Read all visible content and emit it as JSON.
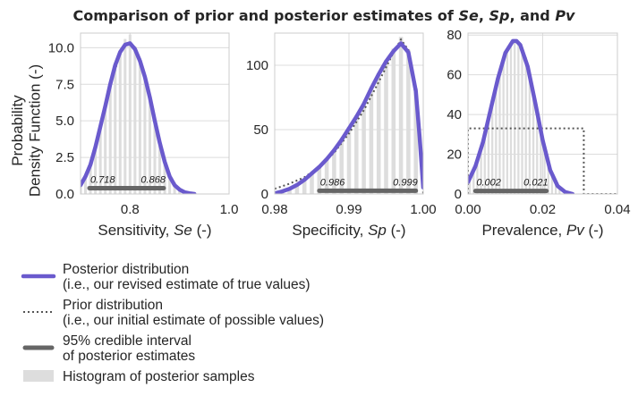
{
  "figure": {
    "title_parts": [
      {
        "text": "Comparison of prior and posterior estimates of ",
        "italic": false
      },
      {
        "text": "Se",
        "italic": true
      },
      {
        "text": ", ",
        "italic": false
      },
      {
        "text": "Sp",
        "italic": true
      },
      {
        "text": ", and ",
        "italic": false
      },
      {
        "text": "Pv",
        "italic": true
      }
    ],
    "ylabel_lines": [
      "Probability",
      "Density Function (-)"
    ]
  },
  "colors": {
    "posterior": "#6a5acd",
    "prior": "#555555",
    "ci": "#666666",
    "hist": "#dddddd",
    "grid": "#dcdcdc",
    "axis": "#cccccc"
  },
  "legend": [
    {
      "kind": "posterior",
      "lines": [
        "Posterior distribution",
        "(i.e., our revised estimate of true values)"
      ]
    },
    {
      "kind": "prior",
      "lines": [
        "Prior distribution",
        "(i.e., our initial estimate of possible values)"
      ]
    },
    {
      "kind": "ci",
      "lines": [
        "95% credible interval",
        "of posterior estimates"
      ]
    },
    {
      "kind": "hist",
      "lines": [
        "Histogram of posterior samples"
      ]
    }
  ],
  "chart_data": [
    {
      "type": "line",
      "xlabel_parts": [
        {
          "text": "Sensitivity, ",
          "italic": false
        },
        {
          "text": "Se",
          "italic": true
        },
        {
          "text": " (-)",
          "italic": false
        }
      ],
      "xlim": [
        0.7,
        1.0
      ],
      "ylim": [
        0,
        11
      ],
      "xticks": [
        0.8,
        1.0
      ],
      "xtick_labels": [
        "0.8",
        "1.0"
      ],
      "yticks": [
        0,
        2.5,
        5,
        7.5,
        10
      ],
      "ytick_labels": [
        "0.0",
        "2.5",
        "5.0",
        "7.5",
        "10.0"
      ],
      "posterior": {
        "x": [
          0.7,
          0.71,
          0.72,
          0.73,
          0.74,
          0.75,
          0.76,
          0.77,
          0.78,
          0.79,
          0.8,
          0.81,
          0.82,
          0.83,
          0.84,
          0.85,
          0.86,
          0.87,
          0.88,
          0.89,
          0.9,
          0.91,
          0.92,
          0.93
        ],
        "y": [
          0.6,
          1.2,
          2.0,
          3.2,
          4.6,
          6.0,
          7.5,
          8.8,
          9.7,
          10.2,
          10.3,
          9.9,
          9.1,
          8.0,
          6.6,
          5.0,
          3.5,
          2.2,
          1.2,
          0.6,
          0.3,
          0.12,
          0.05,
          0.0
        ]
      },
      "prior": {
        "x": [
          0.7,
          0.72,
          0.74,
          0.76,
          0.78,
          0.79,
          0.8,
          0.81,
          0.82,
          0.84,
          0.86,
          0.88,
          0.9
        ],
        "y": [
          0.5,
          1.9,
          4.5,
          7.4,
          9.6,
          10.2,
          10.4,
          10.0,
          9.3,
          6.8,
          3.6,
          1.2,
          0.3
        ]
      },
      "histogram": {
        "x": [
          0.7,
          0.71,
          0.72,
          0.73,
          0.74,
          0.75,
          0.76,
          0.77,
          0.78,
          0.79,
          0.8,
          0.81,
          0.82,
          0.83,
          0.84,
          0.85,
          0.86,
          0.87,
          0.88,
          0.89,
          0.9
        ],
        "y": [
          0.6,
          1.3,
          2.1,
          3.3,
          4.7,
          6.1,
          7.6,
          8.9,
          9.8,
          10.6,
          10.9,
          10.1,
          9.2,
          8.1,
          6.7,
          5.1,
          3.6,
          2.3,
          1.3,
          0.6,
          0.3
        ]
      },
      "ci": {
        "low": 0.718,
        "high": 0.868,
        "y": 0.4,
        "low_label": "0.718",
        "high_label": "0.868"
      }
    },
    {
      "type": "line",
      "xlabel_parts": [
        {
          "text": "Specificity, ",
          "italic": false
        },
        {
          "text": "Sp",
          "italic": true
        },
        {
          "text": " (-)",
          "italic": false
        }
      ],
      "xlim": [
        0.98,
        1.0
      ],
      "ylim": [
        0,
        125
      ],
      "xticks": [
        0.98,
        0.99,
        1.0
      ],
      "xtick_labels": [
        "0.98",
        "0.99",
        "1.00"
      ],
      "yticks": [
        0,
        50,
        100
      ],
      "ytick_labels": [
        "0",
        "50",
        "100"
      ],
      "posterior": {
        "x": [
          0.98,
          0.981,
          0.982,
          0.983,
          0.984,
          0.985,
          0.986,
          0.987,
          0.988,
          0.989,
          0.99,
          0.991,
          0.992,
          0.993,
          0.994,
          0.995,
          0.996,
          0.997,
          0.998,
          0.999,
          0.9995,
          1.0
        ],
        "y": [
          0.5,
          2,
          4,
          7,
          11,
          16,
          21,
          27,
          34,
          42,
          51,
          60,
          70,
          82,
          93,
          103,
          111,
          117,
          110,
          80,
          45,
          5
        ]
      },
      "prior": {
        "x": [
          0.98,
          0.982,
          0.984,
          0.986,
          0.988,
          0.99,
          0.992,
          0.994,
          0.996,
          0.997,
          0.998,
          0.999,
          0.9995,
          1.0
        ],
        "y": [
          4,
          8,
          13,
          21,
          32,
          47,
          65,
          87,
          110,
          120,
          112,
          75,
          38,
          0
        ]
      },
      "histogram": {
        "x": [
          0.98,
          0.981,
          0.982,
          0.983,
          0.984,
          0.985,
          0.986,
          0.987,
          0.988,
          0.989,
          0.99,
          0.991,
          0.992,
          0.993,
          0.994,
          0.995,
          0.996,
          0.997,
          0.998,
          0.999
        ],
        "y": [
          1,
          2,
          4,
          7,
          11,
          16,
          22,
          28,
          35,
          43,
          52,
          61,
          71,
          83,
          94,
          104,
          113,
          122,
          112,
          82
        ]
      },
      "ci": {
        "low": 0.986,
        "high": 0.999,
        "y": 2.5,
        "low_label": "0.986",
        "high_label": "0.999"
      }
    },
    {
      "type": "line",
      "xlabel_parts": [
        {
          "text": "Prevalence, ",
          "italic": false
        },
        {
          "text": "Pv",
          "italic": true
        },
        {
          "text": " (-)",
          "italic": false
        }
      ],
      "xlim": [
        0.0,
        0.04
      ],
      "ylim": [
        0,
        81
      ],
      "xticks": [
        0.0,
        0.02,
        0.04
      ],
      "xtick_labels": [
        "0.00",
        "0.02",
        "0.04"
      ],
      "yticks": [
        0,
        20,
        40,
        60,
        80
      ],
      "ytick_labels": [
        "0",
        "20",
        "40",
        "60",
        "80"
      ],
      "posterior": {
        "x": [
          0.0,
          0.002,
          0.004,
          0.006,
          0.008,
          0.01,
          0.012,
          0.013,
          0.014,
          0.016,
          0.018,
          0.02,
          0.022,
          0.024,
          0.026,
          0.028
        ],
        "y": [
          6,
          14,
          26,
          42,
          58,
          71,
          77,
          77,
          75,
          64,
          46,
          27,
          12,
          4,
          1,
          0
        ]
      },
      "prior": {
        "x": [
          0.0,
          0.0,
          0.031,
          0.031,
          0.04
        ],
        "y": [
          0,
          33,
          33,
          0,
          0
        ]
      },
      "histogram": {
        "x": [
          0.0005,
          0.0015,
          0.0025,
          0.0035,
          0.0045,
          0.0055,
          0.0065,
          0.0075,
          0.0085,
          0.0095,
          0.0105,
          0.0115,
          0.0125,
          0.0135,
          0.0145,
          0.0155,
          0.0165,
          0.0175,
          0.0185,
          0.0195,
          0.0205,
          0.0215,
          0.0225,
          0.0235,
          0.0245
        ],
        "y": [
          8,
          12,
          17,
          24,
          31,
          39,
          47,
          55,
          62,
          68,
          73,
          76,
          78,
          77,
          74,
          69,
          61,
          52,
          42,
          33,
          24,
          16,
          10,
          6,
          3
        ]
      },
      "ci": {
        "low": 0.002,
        "high": 0.021,
        "y": 1.5,
        "low_label": "0.002",
        "high_label": "0.021"
      }
    }
  ]
}
